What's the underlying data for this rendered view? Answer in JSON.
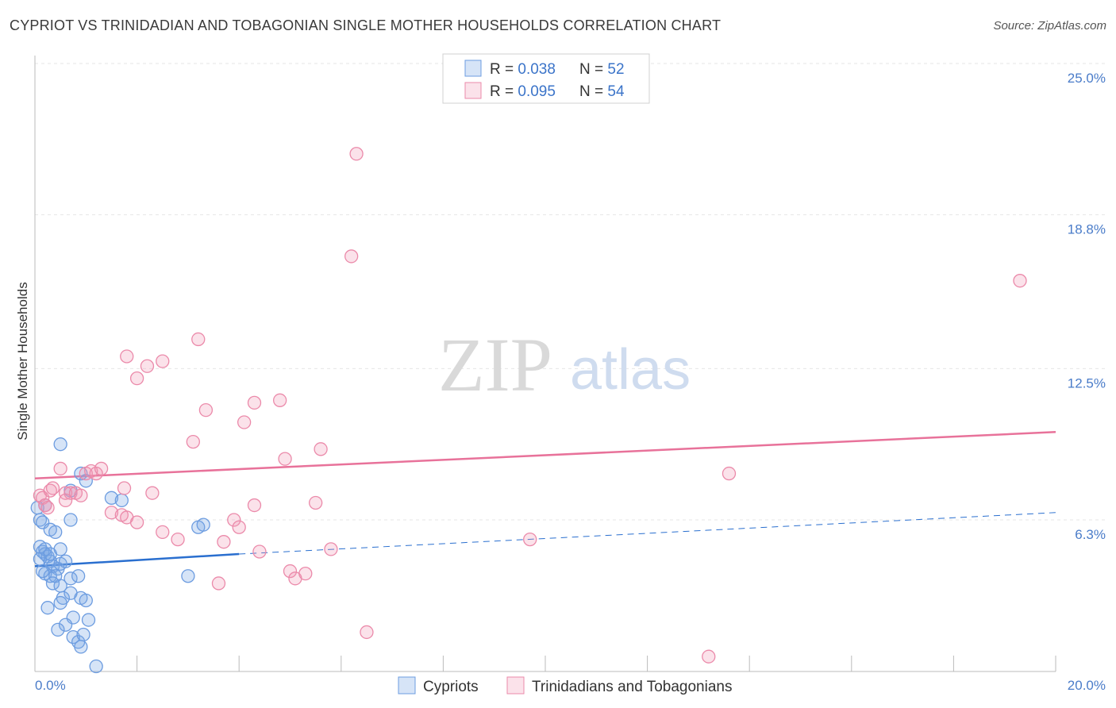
{
  "header": {
    "title": "CYPRIOT VS TRINIDADIAN AND TOBAGONIAN SINGLE MOTHER HOUSEHOLDS CORRELATION CHART",
    "source": "Source: ZipAtlas.com"
  },
  "watermark": {
    "zip": "ZIP",
    "atlas": "atlas"
  },
  "colors": {
    "blue": "#6c9ce0",
    "blue_fill": "rgba(120,165,230,0.30)",
    "blue_line": "#2a6fcf",
    "pink": "#eb8aaa",
    "pink_fill": "rgba(240,150,180,0.28)",
    "pink_line": "#e8729a",
    "grid": "#e6e6e6",
    "tick_text": "#4a7cc9"
  },
  "legend": {
    "rows": [
      {
        "r_label": "R = ",
        "r_value": "0.038",
        "n_label": "N = ",
        "n_value": "52",
        "color": "blue"
      },
      {
        "r_label": "R = ",
        "r_value": "0.095",
        "n_label": "N = ",
        "n_value": "54",
        "color": "pink"
      }
    ]
  },
  "chart_data": {
    "type": "scatter",
    "xlabel": "",
    "ylabel": "Single Mother Households",
    "xlim": [
      0,
      20
    ],
    "ylim": [
      0,
      26
    ],
    "x_tick_labels": [
      "0.0%",
      "20.0%"
    ],
    "y_ticks": [
      {
        "value": 6.3,
        "label": "6.3%"
      },
      {
        "value": 12.5,
        "label": "12.5%"
      },
      {
        "value": 18.8,
        "label": "18.8%"
      },
      {
        "value": 25.0,
        "label": "25.0%"
      }
    ],
    "grid": true,
    "legend_position": "top-center",
    "series": [
      {
        "name": "Cypriots",
        "color": "blue",
        "trend": {
          "x0": 0,
          "y0": 4.4,
          "x1": 4.0,
          "y1": 4.9,
          "dash_x1": 20,
          "dash_y1": 6.6
        },
        "points": [
          [
            0.05,
            6.8
          ],
          [
            0.1,
            6.3
          ],
          [
            0.15,
            6.2
          ],
          [
            0.2,
            6.9
          ],
          [
            0.3,
            5.9
          ],
          [
            0.4,
            5.8
          ],
          [
            0.1,
            5.2
          ],
          [
            0.15,
            5.0
          ],
          [
            0.2,
            4.9
          ],
          [
            0.25,
            4.8
          ],
          [
            0.1,
            4.7
          ],
          [
            0.3,
            4.6
          ],
          [
            0.35,
            4.4
          ],
          [
            0.45,
            4.3
          ],
          [
            0.5,
            4.5
          ],
          [
            0.6,
            4.6
          ],
          [
            0.2,
            4.1
          ],
          [
            0.3,
            4.0
          ],
          [
            0.4,
            4.0
          ],
          [
            0.7,
            3.9
          ],
          [
            0.85,
            4.0
          ],
          [
            0.35,
            3.7
          ],
          [
            0.5,
            3.6
          ],
          [
            0.55,
            3.1
          ],
          [
            0.7,
            3.3
          ],
          [
            0.5,
            2.9
          ],
          [
            0.9,
            3.1
          ],
          [
            1.0,
            3.0
          ],
          [
            0.25,
            2.7
          ],
          [
            0.75,
            2.3
          ],
          [
            1.05,
            2.2
          ],
          [
            0.6,
            2.0
          ],
          [
            0.45,
            1.8
          ],
          [
            0.75,
            1.5
          ],
          [
            0.85,
            1.3
          ],
          [
            0.9,
            1.1
          ],
          [
            0.95,
            1.6
          ],
          [
            1.2,
            0.3
          ],
          [
            0.5,
            5.1
          ],
          [
            0.7,
            6.3
          ],
          [
            0.9,
            8.2
          ],
          [
            1.0,
            7.9
          ],
          [
            0.5,
            9.4
          ],
          [
            0.7,
            7.5
          ],
          [
            1.5,
            7.2
          ],
          [
            1.7,
            7.1
          ],
          [
            3.2,
            6.0
          ],
          [
            3.3,
            6.1
          ],
          [
            3.0,
            4.0
          ],
          [
            0.2,
            5.1
          ],
          [
            0.3,
            4.9
          ],
          [
            0.15,
            4.2
          ]
        ]
      },
      {
        "name": "Trinidadians and Tobagonians",
        "color": "pink",
        "trend": {
          "x0": 0,
          "y0": 8.0,
          "x1": 20,
          "y1": 9.9
        },
        "points": [
          [
            0.1,
            7.3
          ],
          [
            0.15,
            7.2
          ],
          [
            0.2,
            6.9
          ],
          [
            0.25,
            6.8
          ],
          [
            0.3,
            7.5
          ],
          [
            0.35,
            7.6
          ],
          [
            0.5,
            8.4
          ],
          [
            0.6,
            7.4
          ],
          [
            0.7,
            7.4
          ],
          [
            0.8,
            7.4
          ],
          [
            0.9,
            7.3
          ],
          [
            1.0,
            8.2
          ],
          [
            1.1,
            8.3
          ],
          [
            1.2,
            8.2
          ],
          [
            0.6,
            7.1
          ],
          [
            1.3,
            8.4
          ],
          [
            1.5,
            6.6
          ],
          [
            1.7,
            6.5
          ],
          [
            1.8,
            6.4
          ],
          [
            2.0,
            6.2
          ],
          [
            1.75,
            7.6
          ],
          [
            2.3,
            7.4
          ],
          [
            2.5,
            5.8
          ],
          [
            2.8,
            5.5
          ],
          [
            3.6,
            3.7
          ],
          [
            3.7,
            5.4
          ],
          [
            3.9,
            6.3
          ],
          [
            4.0,
            6.0
          ],
          [
            4.3,
            6.9
          ],
          [
            4.4,
            5.0
          ],
          [
            5.0,
            4.2
          ],
          [
            5.1,
            3.9
          ],
          [
            5.3,
            4.1
          ],
          [
            5.5,
            7.0
          ],
          [
            5.6,
            9.2
          ],
          [
            5.8,
            5.1
          ],
          [
            1.8,
            13.0
          ],
          [
            2.0,
            12.1
          ],
          [
            2.2,
            12.6
          ],
          [
            2.5,
            12.8
          ],
          [
            3.2,
            13.7
          ],
          [
            3.35,
            10.8
          ],
          [
            3.1,
            9.5
          ],
          [
            4.1,
            10.3
          ],
          [
            4.3,
            11.1
          ],
          [
            4.9,
            8.8
          ],
          [
            4.8,
            11.2
          ],
          [
            6.2,
            17.1
          ],
          [
            6.3,
            21.3
          ],
          [
            9.7,
            5.5
          ],
          [
            13.6,
            8.2
          ],
          [
            19.3,
            16.1
          ],
          [
            13.2,
            0.7
          ],
          [
            6.5,
            1.7
          ]
        ]
      }
    ]
  }
}
